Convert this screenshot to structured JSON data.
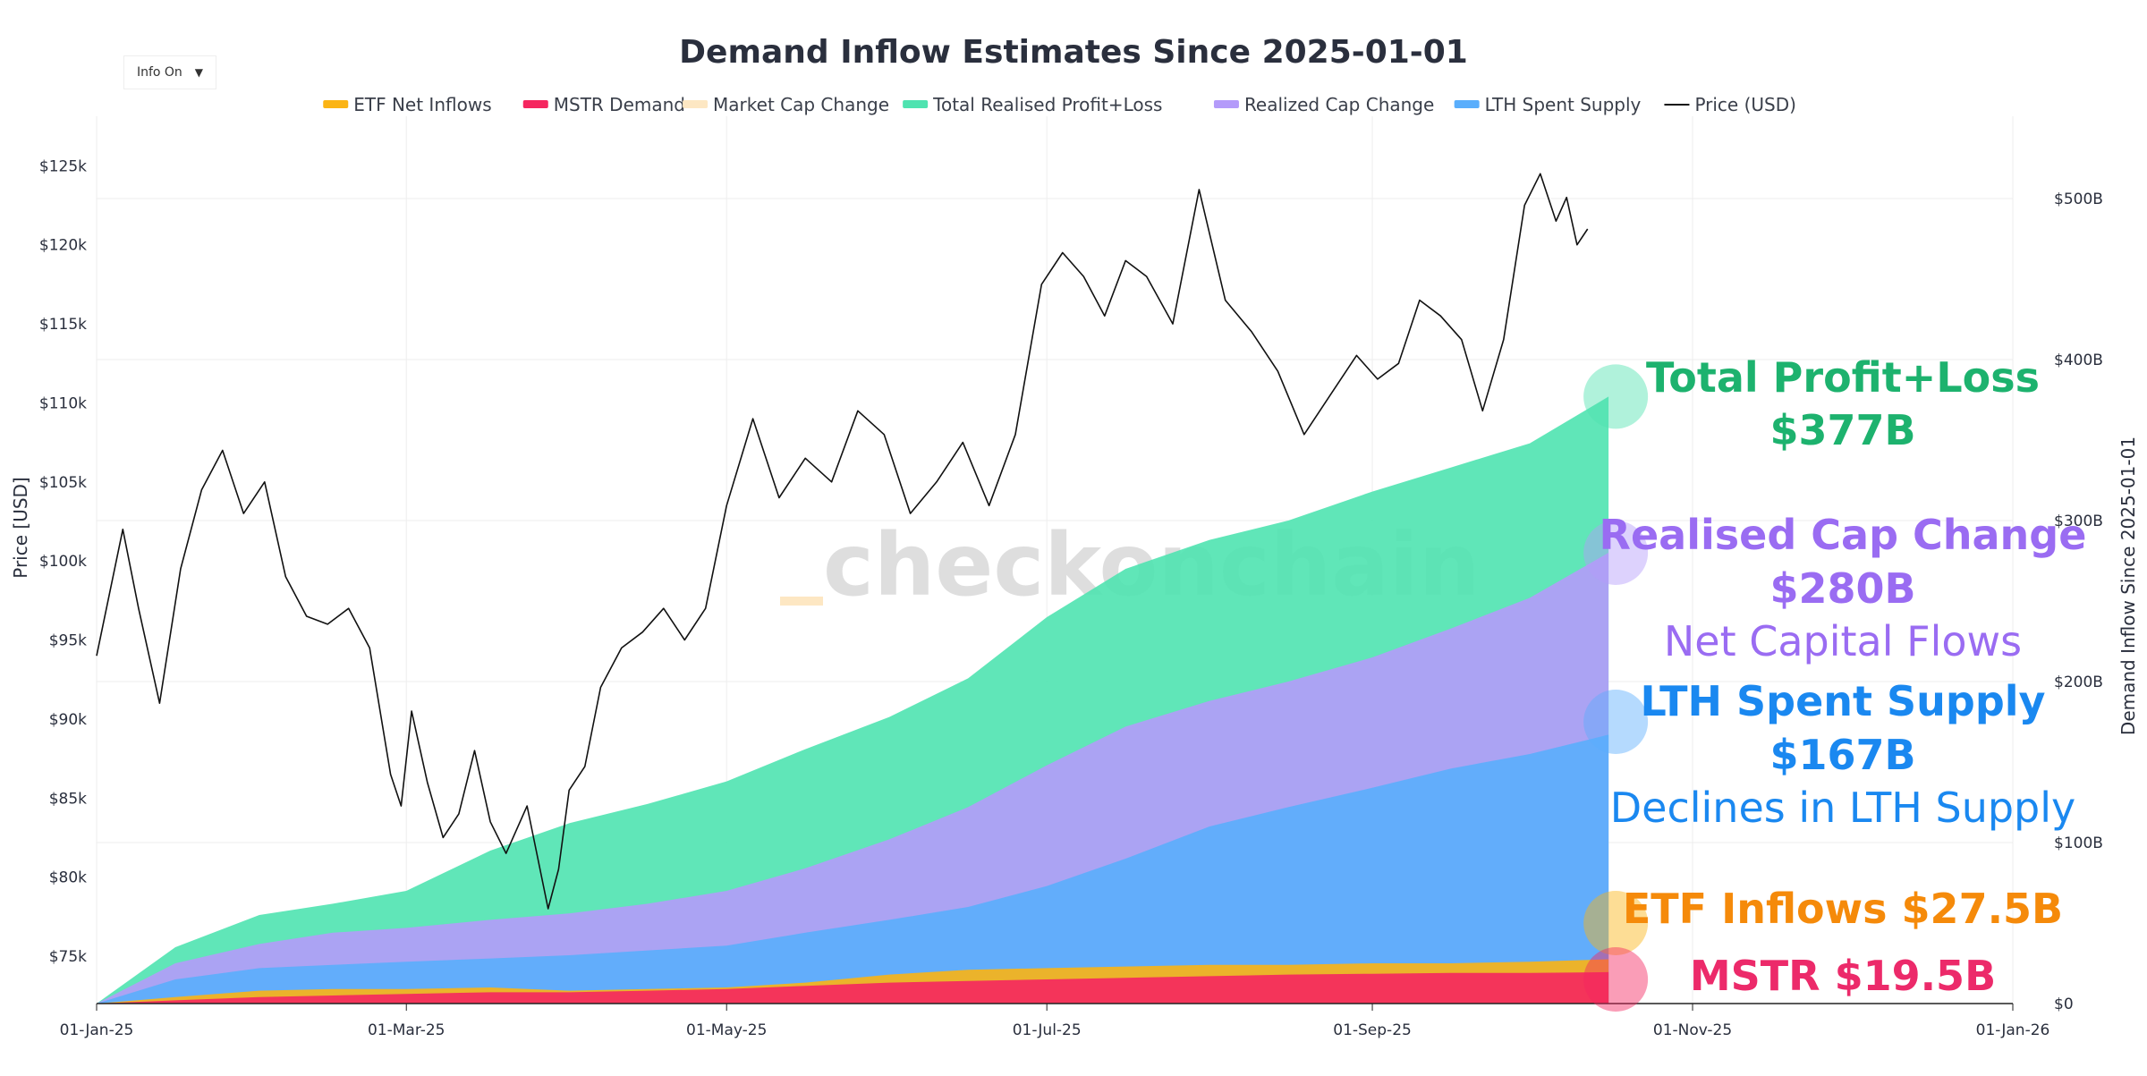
{
  "info_toggle": {
    "label": "Info On",
    "arrow": "▼"
  },
  "watermark": "checkonchain",
  "chart_data": {
    "type": "area",
    "title": "Demand Inflow Estimates Since 2025-01-01",
    "ylabel_left": "Price [USD]",
    "ylabel_right": "Demand Inflow Since 2025-01-01",
    "x_range_days": [
      0,
      365
    ],
    "y_left_range": [
      72000,
      127000
    ],
    "y_right_range": [
      0,
      540
    ],
    "x_ticks": [
      {
        "label": "01-Jan-25",
        "day": 0
      },
      {
        "label": "01-Mar-25",
        "day": 59
      },
      {
        "label": "01-May-25",
        "day": 120
      },
      {
        "label": "01-Jul-25",
        "day": 181
      },
      {
        "label": "01-Sep-25",
        "day": 243
      },
      {
        "label": "01-Nov-25",
        "day": 304
      },
      {
        "label": "01-Jan-26",
        "day": 365
      }
    ],
    "y_left_ticks": [
      {
        "label": "$75k",
        "value": 75000
      },
      {
        "label": "$80k",
        "value": 80000
      },
      {
        "label": "$85k",
        "value": 85000
      },
      {
        "label": "$90k",
        "value": 90000
      },
      {
        "label": "$95k",
        "value": 95000
      },
      {
        "label": "$100k",
        "value": 100000
      },
      {
        "label": "$105k",
        "value": 105000
      },
      {
        "label": "$110k",
        "value": 110000
      },
      {
        "label": "$115k",
        "value": 115000
      },
      {
        "label": "$120k",
        "value": 120000
      },
      {
        "label": "$125k",
        "value": 125000
      }
    ],
    "y_right_ticks": [
      {
        "label": "$0",
        "value": 0
      },
      {
        "label": "$100B",
        "value": 100
      },
      {
        "label": "$200B",
        "value": 200
      },
      {
        "label": "$300B",
        "value": 300
      },
      {
        "label": "$400B",
        "value": 400
      },
      {
        "label": "$500B",
        "value": 500
      }
    ],
    "legend": [
      {
        "name": "ETF Net Inflows",
        "color": "#fbb414",
        "muted": false,
        "kind": "area"
      },
      {
        "name": "MSTR Demand",
        "color": "#f5265f",
        "muted": false,
        "kind": "area"
      },
      {
        "name": "Market Cap Change",
        "color": "#fde7c3",
        "muted": true,
        "kind": "area"
      },
      {
        "name": "Total Realised Profit+Loss",
        "color": "#4fe3b0",
        "muted": false,
        "kind": "area"
      },
      {
        "name": "Realized Cap Change",
        "color": "#b49bfa",
        "muted": false,
        "kind": "area"
      },
      {
        "name": "LTH Spent Supply",
        "color": "#5aaefc",
        "muted": false,
        "kind": "area"
      },
      {
        "name": "Price (USD)",
        "color": "#111111",
        "muted": false,
        "kind": "line"
      }
    ],
    "series_days": [
      0,
      15,
      31,
      45,
      59,
      75,
      90,
      105,
      120,
      135,
      151,
      166,
      181,
      196,
      212,
      227,
      243,
      258,
      273,
      288
    ],
    "series": [
      {
        "name": "Total Realised Profit+Loss",
        "color": "#4fe3b0",
        "values": [
          0,
          35,
          55,
          62,
          70,
          95,
          112,
          124,
          138,
          158,
          178,
          202,
          240,
          270,
          288,
          300,
          318,
          333,
          348,
          377
        ]
      },
      {
        "name": "Realized Cap Change",
        "color": "#b49bfa",
        "values": [
          0,
          25,
          37,
          44,
          47,
          52,
          56,
          62,
          70,
          84,
          102,
          122,
          148,
          172,
          188,
          200,
          215,
          233,
          252,
          280
        ]
      },
      {
        "name": "LTH Spent Supply",
        "color": "#5aaefc",
        "values": [
          0,
          15,
          22,
          24,
          26,
          28,
          30,
          33,
          36,
          44,
          52,
          60,
          73,
          90,
          110,
          122,
          134,
          146,
          155,
          167
        ]
      },
      {
        "name": "ETF Net Inflows",
        "color": "#fbb414",
        "values": [
          0,
          4,
          8,
          9,
          9,
          10,
          8,
          9,
          10,
          13,
          18,
          21,
          22,
          23,
          24,
          24,
          25,
          25,
          26,
          27.5
        ]
      },
      {
        "name": "MSTR Demand",
        "color": "#f5265f",
        "values": [
          0,
          2,
          4,
          5,
          6,
          7,
          7,
          8,
          9,
          11,
          13,
          14,
          15,
          16,
          17,
          18,
          18.5,
          19,
          19,
          19.5
        ]
      }
    ],
    "price_days": [
      0,
      5,
      8,
      12,
      16,
      20,
      24,
      28,
      32,
      36,
      40,
      44,
      48,
      52,
      56,
      58,
      60,
      63,
      66,
      69,
      72,
      75,
      78,
      82,
      86,
      88,
      90,
      93,
      96,
      100,
      104,
      108,
      112,
      116,
      120,
      125,
      130,
      135,
      140,
      145,
      150,
      155,
      160,
      165,
      170,
      175,
      180,
      184,
      188,
      192,
      196,
      200,
      205,
      210,
      215,
      220,
      225,
      230,
      235,
      240,
      244,
      248,
      252,
      256,
      260,
      264,
      268,
      272,
      275,
      278,
      280,
      282,
      284
    ],
    "price": [
      94000,
      102000,
      97000,
      91000,
      99500,
      104500,
      107000,
      103000,
      105000,
      99000,
      96500,
      96000,
      97000,
      94500,
      86500,
      84500,
      90500,
      86000,
      82500,
      84000,
      88000,
      83500,
      81500,
      84500,
      78000,
      80500,
      85500,
      87000,
      92000,
      94500,
      95500,
      97000,
      95000,
      97000,
      103500,
      109000,
      104000,
      106500,
      105000,
      109500,
      108000,
      103000,
      105000,
      107500,
      103500,
      108000,
      117500,
      119500,
      118000,
      115500,
      119000,
      118000,
      115000,
      123500,
      116500,
      114500,
      112000,
      108000,
      110500,
      113000,
      111500,
      112500,
      116500,
      115500,
      114000,
      109500,
      114000,
      122500,
      124500,
      121500,
      123000,
      120000,
      121000
    ],
    "annotations": [
      {
        "title": "Total Profit+Loss",
        "value": "$377B",
        "subtitle": "",
        "color": "#1db26e",
        "circle": "#4fe3b0",
        "anchor": 377
      },
      {
        "title": "Realised Cap Change",
        "value": "$280B",
        "subtitle": "Net Capital Flows",
        "color": "#9a6cf2",
        "circle": "#b49bfa",
        "anchor": 280
      },
      {
        "title": "LTH Spent Supply",
        "value": "$167B",
        "subtitle": "Declines in LTH Supply",
        "color": "#1a88f0",
        "circle": "#5aaefc",
        "anchor": 167
      },
      {
        "title": "ETF Inflows $27.5B",
        "value": "",
        "subtitle": "",
        "color": "#f58a0a",
        "circle": "#fbb414",
        "anchor": 50
      },
      {
        "title": "MSTR $19.5B",
        "value": "",
        "subtitle": "",
        "color": "#ec2a6a",
        "circle": "#f5265f",
        "anchor": 19.5
      }
    ]
  }
}
